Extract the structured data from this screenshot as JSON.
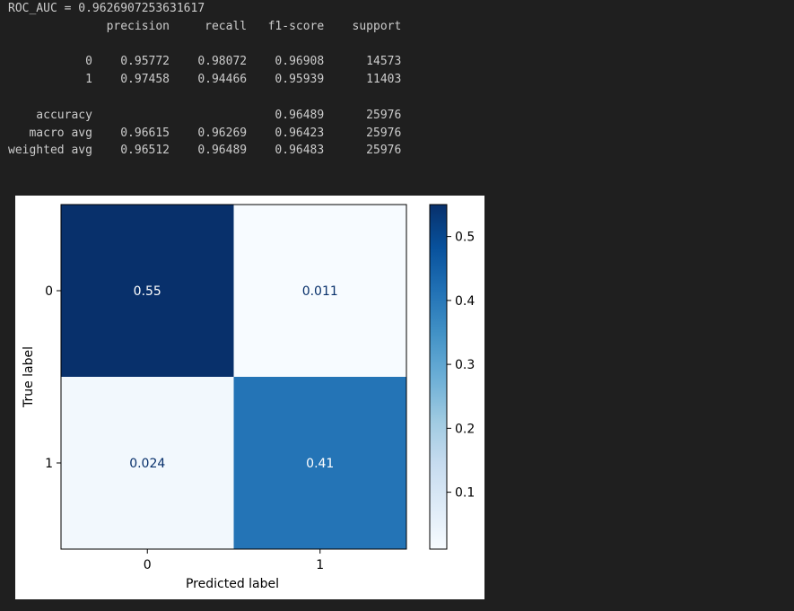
{
  "console": {
    "roc_line": "ROC_AUC = 0.9626907253631617",
    "report_header": [
      "precision",
      "recall",
      "f1-score",
      "support"
    ],
    "report_rows": [
      {
        "label": "0",
        "precision": "0.95772",
        "recall": "0.98072",
        "f1": "0.96908",
        "support": "14573"
      },
      {
        "label": "1",
        "precision": "0.97458",
        "recall": "0.94466",
        "f1": "0.95939",
        "support": "11403"
      }
    ],
    "accuracy_row": {
      "label": "accuracy",
      "precision": "",
      "recall": "",
      "f1": "0.96489",
      "support": "25976"
    },
    "avg_rows": [
      {
        "label": "macro avg",
        "precision": "0.96615",
        "recall": "0.96269",
        "f1": "0.96423",
        "support": "25976"
      },
      {
        "label": "weighted avg",
        "precision": "0.96512",
        "recall": "0.96489",
        "f1": "0.96483",
        "support": "25976"
      }
    ]
  },
  "chart_data": {
    "type": "heatmap",
    "title": "",
    "xlabel": "Predicted label",
    "ylabel": "True label",
    "x_categories": [
      "0",
      "1"
    ],
    "y_categories": [
      "0",
      "1"
    ],
    "values": [
      [
        0.55,
        0.011
      ],
      [
        0.024,
        0.41
      ]
    ],
    "cell_labels": [
      [
        "0.55",
        "0.011"
      ],
      [
        "0.024",
        "0.41"
      ]
    ],
    "colormap": "Blues",
    "colorbar": {
      "range": [
        0.011,
        0.55
      ],
      "ticks": [
        0.1,
        0.2,
        0.3,
        0.4,
        0.5
      ],
      "tick_labels": [
        "0.1",
        "0.2",
        "0.3",
        "0.4",
        "0.5"
      ]
    },
    "colors": {
      "dark_text": "#ffffff",
      "light_text": "#08306b"
    }
  }
}
